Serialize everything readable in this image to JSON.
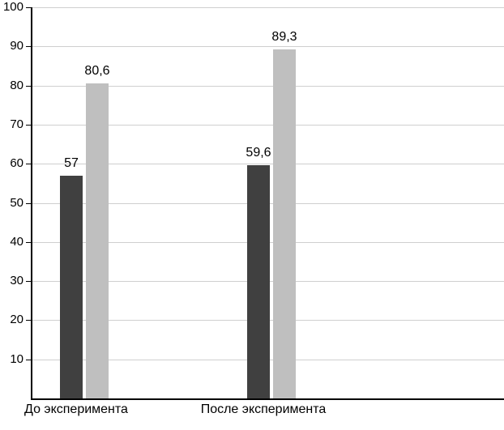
{
  "chart_data": {
    "type": "bar",
    "title": "",
    "xlabel": "",
    "ylabel": "",
    "categories": [
      "До эксперимента",
      "После эксперимента"
    ],
    "series": [
      {
        "color": "#404040",
        "values": [
          57,
          59.6
        ],
        "value_labels": [
          "57",
          "59,6"
        ]
      },
      {
        "color": "#bfbfbf",
        "values": [
          80.6,
          89.3
        ],
        "value_labels": [
          "80,6",
          "89,3"
        ]
      }
    ],
    "ylim": [
      0,
      100
    ],
    "yticks": [
      10,
      20,
      30,
      40,
      50,
      60,
      70,
      80,
      90,
      100
    ],
    "ytick_labels": [
      "10",
      "20",
      "30",
      "40",
      "50",
      "60",
      "70",
      "80",
      "90",
      "100"
    ],
    "grid": true,
    "legend": "none",
    "decimal_separator": ","
  }
}
